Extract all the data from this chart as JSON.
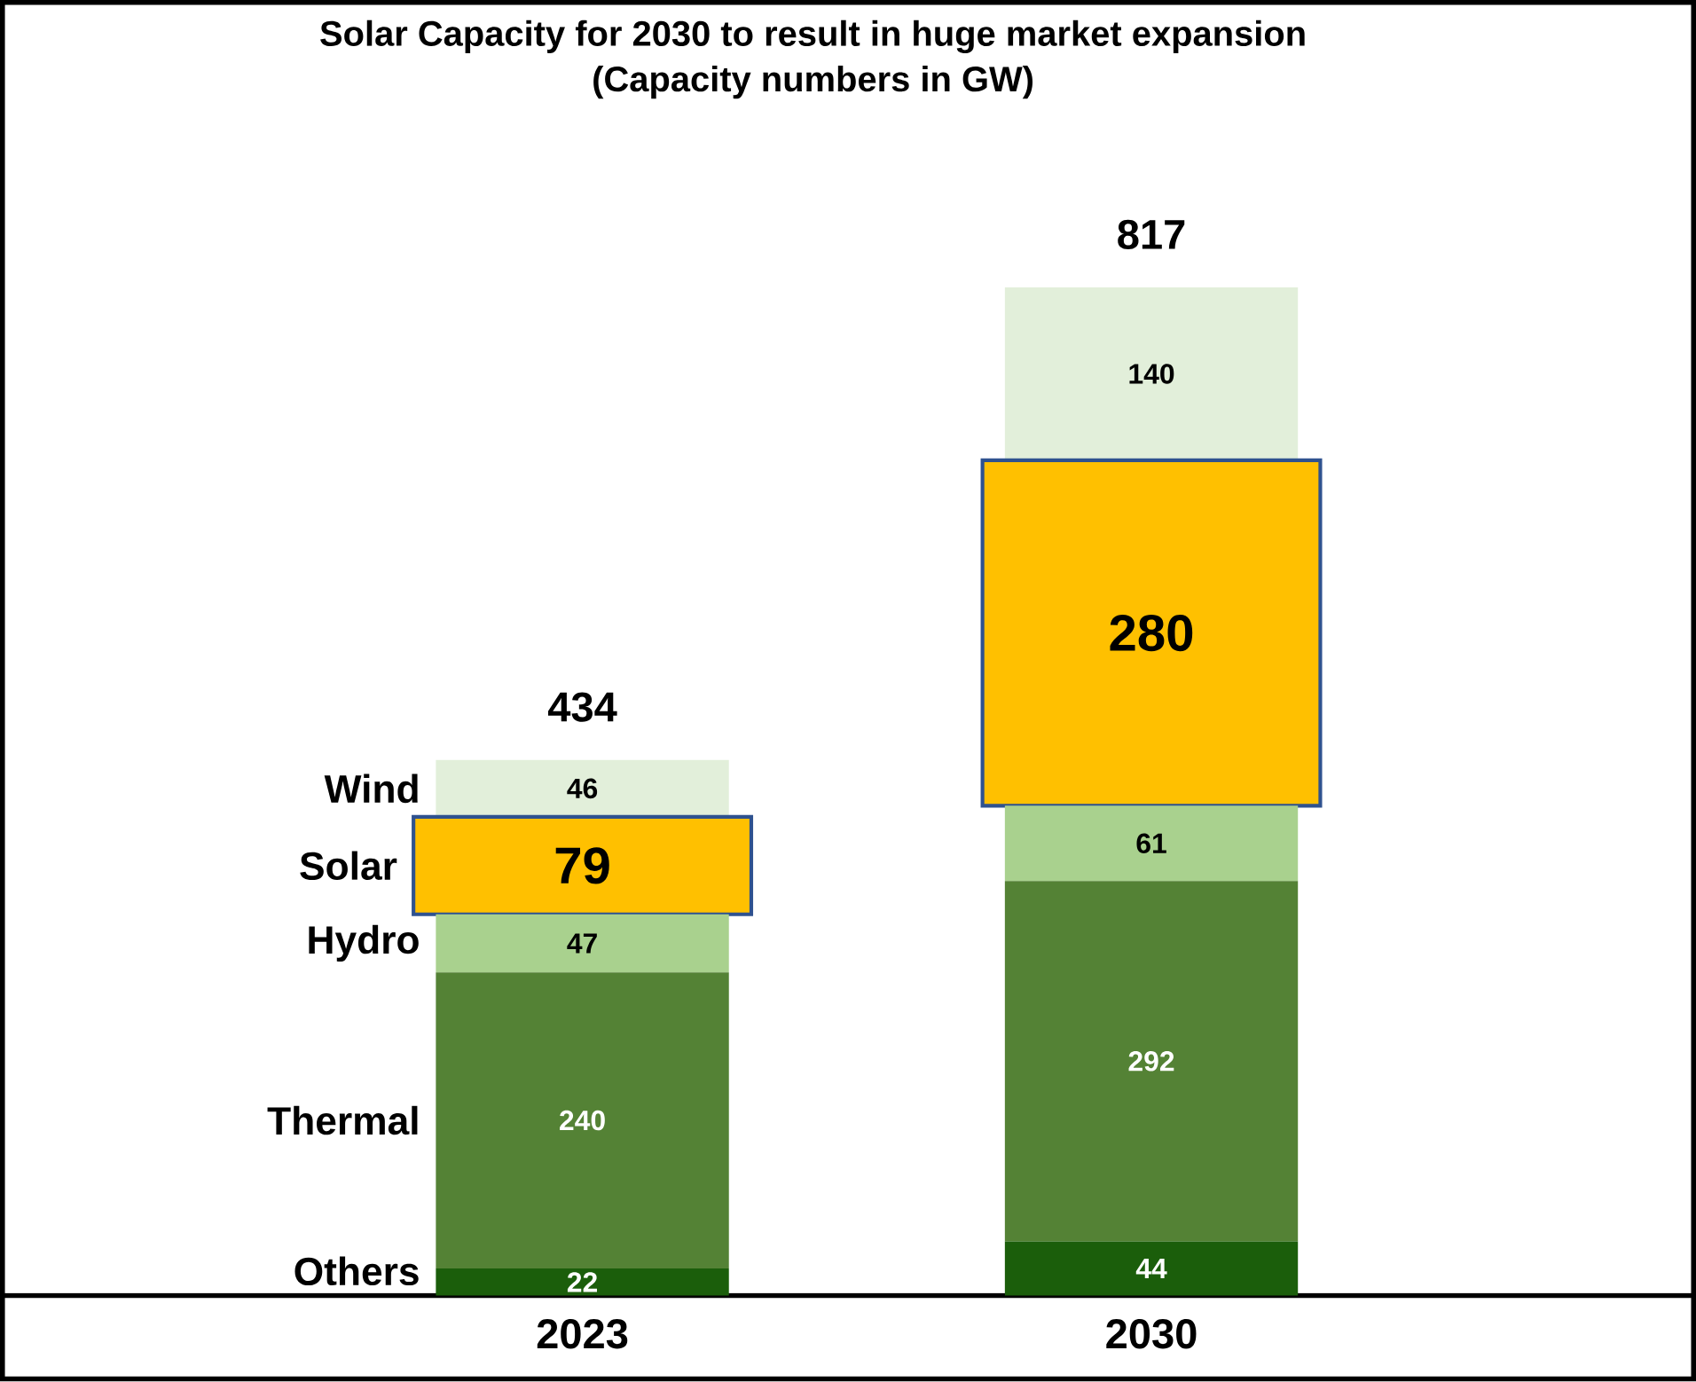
{
  "chart_data": {
    "type": "bar",
    "stacked": true,
    "title": "Solar Capacity for 2030 to result in huge market expansion",
    "subtitle": "(Capacity numbers in GW)",
    "categories": [
      "2023",
      "2030"
    ],
    "series": [
      {
        "name": "Others",
        "color": "#1b5e0b",
        "values": [
          22,
          44
        ]
      },
      {
        "name": "Thermal",
        "color": "#548235",
        "values": [
          240,
          292
        ]
      },
      {
        "name": "Hydro",
        "color": "#a9d18e",
        "values": [
          47,
          61
        ]
      },
      {
        "name": "Solar",
        "color": "#ffc000",
        "values": [
          79,
          280
        ]
      },
      {
        "name": "Wind",
        "color": "#e2efda",
        "values": [
          46,
          140
        ]
      }
    ],
    "data_labels": true,
    "totals": [
      "434",
      "817"
    ],
    "tick_labels": "x"
  }
}
